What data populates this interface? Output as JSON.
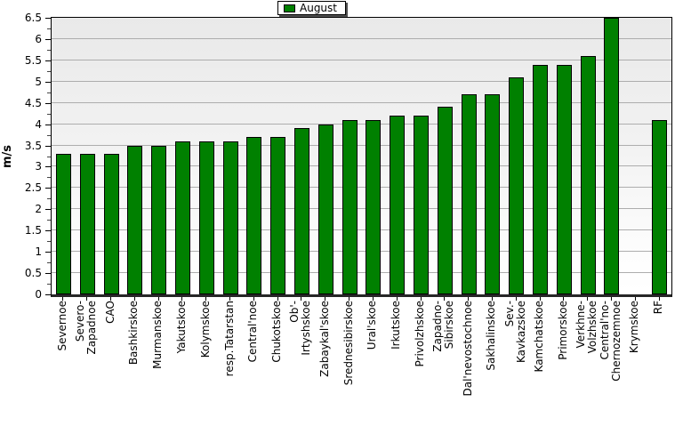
{
  "chart_data": {
    "type": "bar",
    "title": "",
    "legend_label": "August",
    "legend_position": "top-center",
    "ylabel": "m/s",
    "xlabel": "",
    "ylim": [
      0,
      6.5
    ],
    "ytick_step": 0.5,
    "grid": true,
    "bar_color": "#008000",
    "bar_border_color": "#000000",
    "plot_bg_top": "#e9e9e9",
    "plot_bg_bottom": "#ffffff",
    "categories": [
      "Severnoe",
      "Severo-\nZapadnoe",
      "CAO",
      "Bashkirskoe",
      "Murmanskoe",
      "Yakutskoe",
      "Kolymskoe",
      "resp.Tatarstan",
      "Central'noe",
      "Chukotskoe",
      "Ob'-\nIrtyshskoe",
      "Zabaykal'skoe",
      "Srednesibirskoe",
      "Ural'skoe",
      "Irkutskoe",
      "Privolzhskoe",
      "Zapadno-\nSibirskoe",
      "Dal'nevostochnoe",
      "Sakhalinskoe",
      "Sev.-\nKavkazskoe",
      "Kamchatskoe",
      "Primorskoe",
      "Verkhne-\nVolzhskoe",
      "Central'no-\nChernozemnoe",
      "Krymskoe",
      "RF"
    ],
    "values": [
      3.3,
      3.3,
      3.3,
      3.5,
      3.5,
      3.6,
      3.6,
      3.6,
      3.7,
      3.7,
      3.9,
      4.0,
      4.1,
      4.1,
      4.2,
      4.2,
      4.4,
      4.7,
      4.7,
      5.1,
      5.4,
      5.4,
      5.6,
      6.5,
      0,
      4.1
    ]
  }
}
